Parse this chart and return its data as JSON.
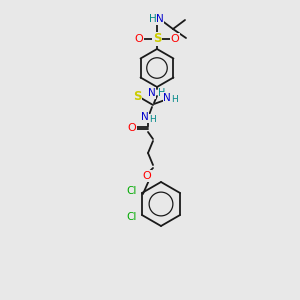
{
  "background_color": "#e8e8e8",
  "bond_color": "#1a1a1a",
  "atom_colors": {
    "O": "#ff0000",
    "N": "#0000cc",
    "H": "#008888",
    "S_sulfonyl": "#cccc00",
    "S_thio": "#cccc00",
    "Cl": "#00aa00",
    "C": "#1a1a1a"
  },
  "fig_width": 3.0,
  "fig_height": 3.0,
  "dpi": 100
}
